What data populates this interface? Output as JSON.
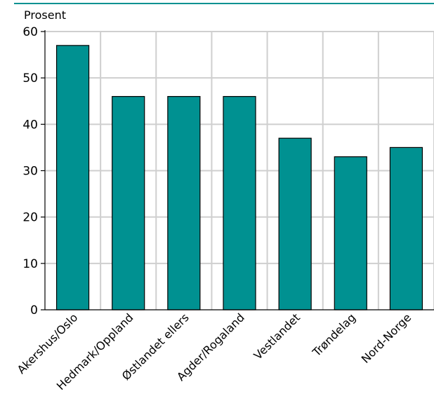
{
  "chart_data": {
    "type": "bar",
    "ylabel": "Prosent",
    "categories": [
      "Akershus/Oslo",
      "Hedmark/Oppland",
      "Østlandet ellers",
      "Agder/Rogaland",
      "Vestlandet",
      "Trøndelag",
      "Nord-Norge"
    ],
    "values": [
      57,
      46,
      46,
      46,
      37,
      33,
      35
    ],
    "ylim": [
      0,
      60
    ],
    "yticks": [
      "0",
      "10",
      "20",
      "30",
      "40",
      "50",
      "60"
    ],
    "grid": true,
    "bar_color": "#009191",
    "top_rule_color": "#009191"
  }
}
